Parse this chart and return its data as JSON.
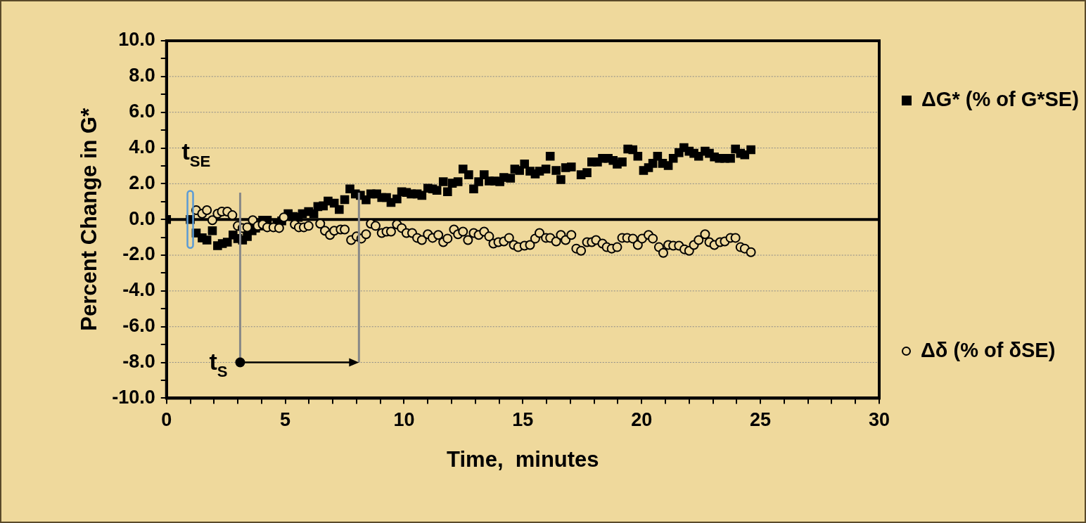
{
  "chart_data": {
    "type": "scatter",
    "xlabel": "Time,  minutes",
    "ylabel": "Percent Change in G*",
    "xlim": [
      0,
      30
    ],
    "xticks": [
      0,
      {
        "value": 1,
        "label": null
      },
      {
        "value": 2,
        "label": null
      },
      {
        "value": 3,
        "label": null
      },
      {
        "value": 4,
        "label": null
      },
      5,
      {
        "value": 6,
        "label": null
      },
      {
        "value": 7,
        "label": null
      },
      {
        "value": 8,
        "label": null
      },
      {
        "value": 9,
        "label": null
      },
      10,
      {
        "value": 11,
        "label": null
      },
      {
        "value": 12,
        "label": null
      },
      {
        "value": 13,
        "label": null
      },
      {
        "value": 14,
        "label": null
      },
      15,
      {
        "value": 16,
        "label": null
      },
      {
        "value": 17,
        "label": null
      },
      {
        "value": 18,
        "label": null
      },
      {
        "value": 19,
        "label": null
      },
      20,
      {
        "value": 21,
        "label": null
      },
      {
        "value": 22,
        "label": null
      },
      {
        "value": 23,
        "label": null
      },
      {
        "value": 24,
        "label": null
      },
      25,
      {
        "value": 26,
        "label": null
      },
      {
        "value": 27,
        "label": null
      },
      {
        "value": 28,
        "label": null
      },
      {
        "value": 29,
        "label": null
      },
      30
    ],
    "ylim": [
      -10,
      10
    ],
    "yticks": [
      {
        "value": -10,
        "label": "-10.0"
      },
      {
        "value": -9,
        "label": null
      },
      {
        "value": -8,
        "label": "-8.0"
      },
      {
        "value": -7,
        "label": null
      },
      {
        "value": -6,
        "label": "-6.0"
      },
      {
        "value": -5,
        "label": null
      },
      {
        "value": -4,
        "label": "-4.0"
      },
      {
        "value": -3,
        "label": null
      },
      {
        "value": -2,
        "label": "-2.0"
      },
      {
        "value": -1,
        "label": null
      },
      {
        "value": 0,
        "label": "0.0"
      },
      {
        "value": 1,
        "label": null
      },
      {
        "value": 2,
        "label": "2.0"
      },
      {
        "value": 3,
        "label": null
      },
      {
        "value": 4,
        "label": "4.0"
      },
      {
        "value": 5,
        "label": null
      },
      {
        "value": 6,
        "label": "6.0"
      },
      {
        "value": 7,
        "label": null
      },
      {
        "value": 8,
        "label": "8.0"
      },
      {
        "value": 9,
        "label": null
      },
      {
        "value": 10,
        "label": "10.0"
      }
    ],
    "grid": "y",
    "legend": "right",
    "ref_lines": [
      {
        "axis": "y",
        "value": 0,
        "color": "#000000"
      }
    ],
    "annotations": [
      {
        "text": "t$_{SE}$",
        "x": 1,
        "y": 0
      },
      {
        "text": "t$_{S}$",
        "x": 3.1,
        "y": -8
      }
    ],
    "series": [
      {
        "name": "ΔG* (% of G*SE)",
        "color": "#000000",
        "marker": "square",
        "x": [
          0,
          1.0,
          1.25,
          1.5,
          1.7,
          1.93,
          2.15,
          2.35,
          2.56,
          2.8,
          3.0,
          3.2,
          3.4,
          3.6,
          3.75,
          3.9,
          4.05,
          4.24,
          4.65,
          4.85,
          5.12,
          5.33,
          5.54,
          5.72,
          5.98,
          6.2,
          6.37,
          6.6,
          6.8,
          7.06,
          7.27,
          7.5,
          7.72,
          7.95,
          8.16,
          8.4,
          8.6,
          8.85,
          9.06,
          9.26,
          9.45,
          9.7,
          9.9,
          10.1,
          10.3,
          10.55,
          10.75,
          11.0,
          11.2,
          11.38,
          11.65,
          11.83,
          12.03,
          12.27,
          12.48,
          12.72,
          12.93,
          13.14,
          13.37,
          13.58,
          13.82,
          14.03,
          14.2,
          14.48,
          14.66,
          14.86,
          15.07,
          15.3,
          15.52,
          15.7,
          15.97,
          16.15,
          16.4,
          16.6,
          16.8,
          17.04,
          17.45,
          17.7,
          17.9,
          18.14,
          18.35,
          18.59,
          18.8,
          18.97,
          19.18,
          19.42,
          19.63,
          19.84,
          20.08,
          20.29,
          20.47,
          20.67,
          20.88,
          21.12,
          21.33,
          21.57,
          21.78,
          22.0,
          22.2,
          22.4,
          22.67,
          22.85,
          23.06,
          23.27,
          23.5,
          23.74,
          23.95,
          24.16,
          24.34,
          24.6
        ],
        "values": [
          0,
          0,
          -0.76,
          -1.03,
          -1.15,
          -0.63,
          -1.47,
          -1.35,
          -1.27,
          -0.87,
          -1.07,
          -1.15,
          -0.95,
          -0.63,
          -0.48,
          -0.36,
          -0.04,
          -0.04,
          -0.24,
          -0.08,
          0.32,
          0.16,
          0.12,
          0.32,
          0.44,
          0.32,
          0.72,
          0.76,
          1.03,
          0.91,
          0.56,
          1.11,
          1.71,
          1.43,
          1.35,
          1.1,
          1.43,
          1.43,
          1.23,
          1.23,
          0.95,
          1.15,
          1.55,
          1.51,
          1.43,
          1.43,
          1.35,
          1.75,
          1.71,
          1.63,
          2.11,
          1.55,
          2.03,
          2.11,
          2.82,
          2.5,
          1.71,
          2.11,
          2.5,
          2.15,
          2.15,
          2.11,
          2.35,
          2.31,
          2.82,
          2.74,
          3.1,
          2.7,
          2.55,
          2.7,
          2.82,
          3.54,
          2.74,
          2.23,
          2.9,
          2.94,
          2.5,
          2.62,
          3.22,
          3.22,
          3.42,
          3.42,
          3.3,
          3.1,
          3.22,
          3.94,
          3.9,
          3.54,
          2.74,
          2.9,
          3.14,
          3.54,
          3.14,
          3.02,
          3.42,
          3.74,
          4.02,
          3.82,
          3.7,
          3.54,
          3.82,
          3.7,
          3.5,
          3.42,
          3.42,
          3.42,
          3.94,
          3.7,
          3.62,
          3.9
        ]
      },
      {
        "name": "Δδ (% of δSE)",
        "color": "#000000",
        "marker": "circle",
        "x": [
          1.25,
          1.5,
          1.7,
          1.93,
          2.15,
          2.33,
          2.56,
          2.77,
          3.0,
          3.2,
          3.4,
          3.63,
          3.84,
          4.05,
          4.24,
          4.5,
          4.74,
          4.94,
          5.4,
          5.57,
          5.78,
          5.98,
          6.47,
          6.67,
          6.88,
          7.06,
          7.33,
          7.5,
          7.77,
          8.0,
          8.2,
          8.4,
          8.6,
          8.8,
          9.06,
          9.26,
          9.45,
          9.7,
          9.9,
          10.1,
          10.34,
          10.55,
          10.75,
          11.0,
          11.2,
          11.44,
          11.65,
          11.83,
          12.1,
          12.27,
          12.48,
          12.69,
          12.93,
          13.14,
          13.37,
          13.58,
          13.76,
          13.97,
          14.2,
          14.42,
          14.62,
          14.8,
          15.07,
          15.3,
          15.52,
          15.7,
          15.97,
          16.15,
          16.4,
          16.6,
          16.8,
          17.04,
          17.25,
          17.45,
          17.7,
          17.9,
          18.08,
          18.35,
          18.53,
          18.74,
          18.97,
          19.18,
          19.39,
          19.63,
          19.84,
          20.02,
          20.29,
          20.47,
          20.73,
          20.91,
          21.12,
          21.33,
          21.57,
          21.8,
          22.0,
          22.2,
          22.4,
          22.67,
          22.85,
          23.06,
          23.3,
          23.5,
          23.74,
          23.95,
          24.16,
          24.34,
          24.6
        ],
        "values": [
          0.52,
          0.32,
          0.52,
          -0.04,
          0.32,
          0.44,
          0.44,
          0.24,
          -0.36,
          -0.48,
          -0.44,
          -0.04,
          -0.36,
          -0.28,
          -0.44,
          -0.44,
          -0.48,
          0.12,
          -0.28,
          -0.44,
          -0.44,
          -0.36,
          -0.24,
          -0.63,
          -0.87,
          -0.63,
          -0.56,
          -0.56,
          -1.15,
          -0.95,
          -1.07,
          -0.83,
          -0.24,
          -0.36,
          -0.76,
          -0.68,
          -0.68,
          -0.28,
          -0.48,
          -0.76,
          -0.76,
          -1.03,
          -1.15,
          -0.83,
          -1.03,
          -0.87,
          -1.27,
          -1.07,
          -0.56,
          -0.83,
          -0.68,
          -1.15,
          -0.76,
          -0.87,
          -0.68,
          -0.95,
          -1.35,
          -1.27,
          -1.23,
          -1.03,
          -1.43,
          -1.55,
          -1.47,
          -1.43,
          -1.07,
          -0.76,
          -1.03,
          -1.03,
          -1.23,
          -0.87,
          -1.15,
          -0.87,
          -1.63,
          -1.75,
          -1.27,
          -1.27,
          -1.15,
          -1.35,
          -1.55,
          -1.63,
          -1.55,
          -1.03,
          -1.03,
          -1.07,
          -1.43,
          -1.07,
          -0.87,
          -1.07,
          -1.55,
          -1.87,
          -1.43,
          -1.47,
          -1.47,
          -1.67,
          -1.75,
          -1.43,
          -1.15,
          -0.83,
          -1.27,
          -1.43,
          -1.27,
          -1.23,
          -1.03,
          -1.03,
          -1.55,
          -1.63,
          -1.83
        ]
      }
    ]
  }
}
